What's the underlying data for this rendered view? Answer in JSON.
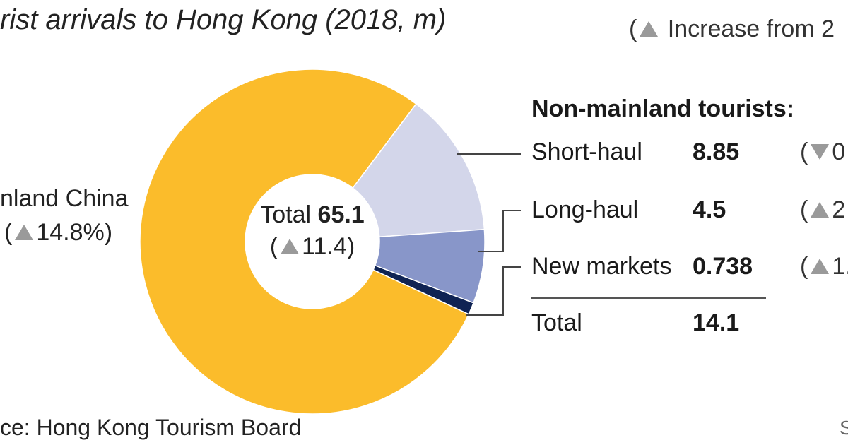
{
  "title": "rist arrivals to Hong Kong (2018, m)",
  "increase_note": "Increase from 2",
  "chart_data": {
    "type": "pie",
    "style": "donut",
    "total": {
      "label": "Total",
      "value": "65.1",
      "change": "11.4",
      "direction": "up"
    },
    "slices": [
      {
        "name": "nland China",
        "value": 51.0,
        "change": "14.8%",
        "direction": "up",
        "color": "#fbbc2b"
      },
      {
        "name": "Short-haul",
        "value": 8.85,
        "color": "#d3d6ea"
      },
      {
        "name": "Long-haul",
        "value": 4.5,
        "color": "#8896c9"
      },
      {
        "name": "New markets",
        "value": 0.738,
        "color": "#0f2353"
      }
    ]
  },
  "non_mainland": {
    "heading": "Non-mainland tourists:",
    "rows": [
      {
        "label": "Short-haul",
        "value": "8.85",
        "change": "0",
        "direction": "down"
      },
      {
        "label": "Long-haul",
        "value": "4.5",
        "change": "2",
        "direction": "up"
      },
      {
        "label": "New markets",
        "value": "0.738",
        "change": "1.",
        "direction": "up"
      }
    ],
    "total_label": "Total",
    "total_value": "14.1"
  },
  "source": "ce: Hong Kong Tourism Board",
  "corner_text": "S"
}
